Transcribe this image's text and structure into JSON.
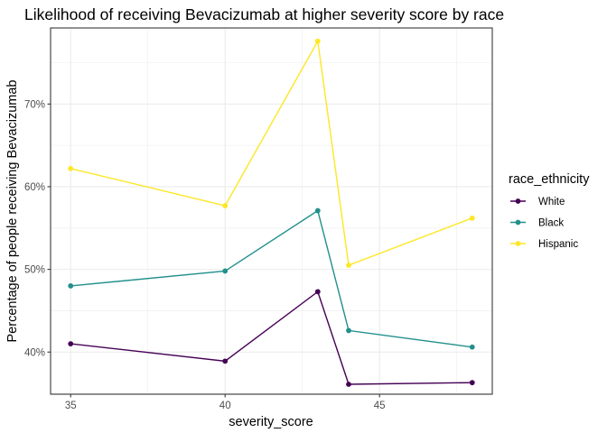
{
  "chart_data": {
    "type": "line",
    "title": "Likelihood of receiving Bevacizumab at higher severity score by race",
    "xlabel": "severity_score",
    "ylabel": "Percentage of people receiving Bevacizumab",
    "xlim": [
      34.35,
      48.65
    ],
    "ylim": [
      34.9,
      79.2
    ],
    "x_ticks": [
      35,
      40,
      45
    ],
    "x_tick_labels": [
      "35",
      "40",
      "45"
    ],
    "y_ticks": [
      40,
      50,
      60,
      70
    ],
    "y_tick_labels": [
      "40%",
      "50%",
      "60%",
      "70%"
    ],
    "grid": true,
    "legend": {
      "title": "race_ethnicity",
      "position": "right"
    },
    "x": [
      35,
      40,
      43,
      44,
      48
    ],
    "series": [
      {
        "name": "White",
        "color": "#440154",
        "values": [
          41.0,
          38.9,
          47.3,
          36.1,
          36.3
        ]
      },
      {
        "name": "Black",
        "color": "#21908C",
        "values": [
          48.0,
          49.8,
          57.1,
          42.6,
          40.6
        ]
      },
      {
        "name": "Hispanic",
        "color": "#FDE725",
        "values": [
          62.2,
          57.7,
          77.6,
          50.5,
          56.2
        ]
      }
    ]
  }
}
